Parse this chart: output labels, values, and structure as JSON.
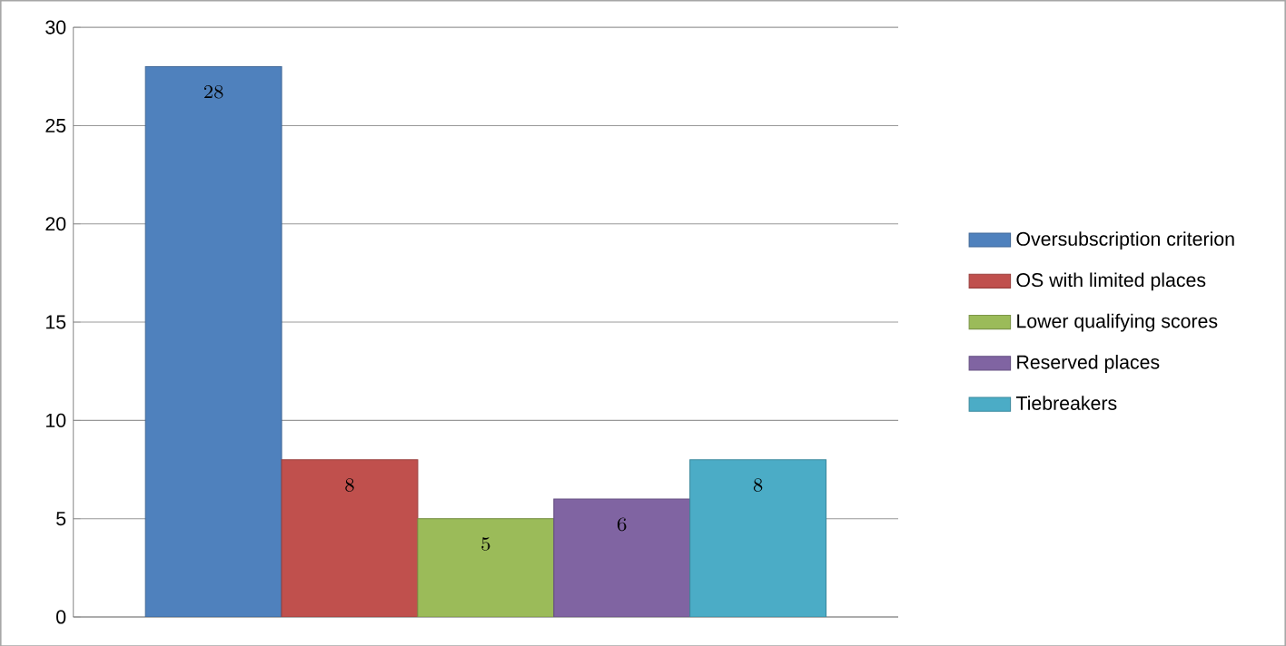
{
  "chart_data": {
    "type": "bar",
    "categories": [
      null
    ],
    "series": [
      {
        "name": "Oversubscription criterion",
        "color": "#4f81bd",
        "values": [
          28
        ]
      },
      {
        "name": "OS with limited places",
        "color": "#c0504d",
        "values": [
          8
        ]
      },
      {
        "name": "Lower qualifying scores",
        "color": "#9bbb59",
        "values": [
          5
        ]
      },
      {
        "name": "Reserved places",
        "color": "#8064a2",
        "values": [
          6
        ]
      },
      {
        "name": "Tiebreakers",
        "color": "#4bacc6",
        "values": [
          8
        ]
      }
    ],
    "ylim": [
      0,
      30
    ],
    "yticks": [
      0,
      5,
      10,
      15,
      20,
      25,
      30
    ],
    "grid": "y",
    "legend": "right",
    "data_labels": true
  }
}
